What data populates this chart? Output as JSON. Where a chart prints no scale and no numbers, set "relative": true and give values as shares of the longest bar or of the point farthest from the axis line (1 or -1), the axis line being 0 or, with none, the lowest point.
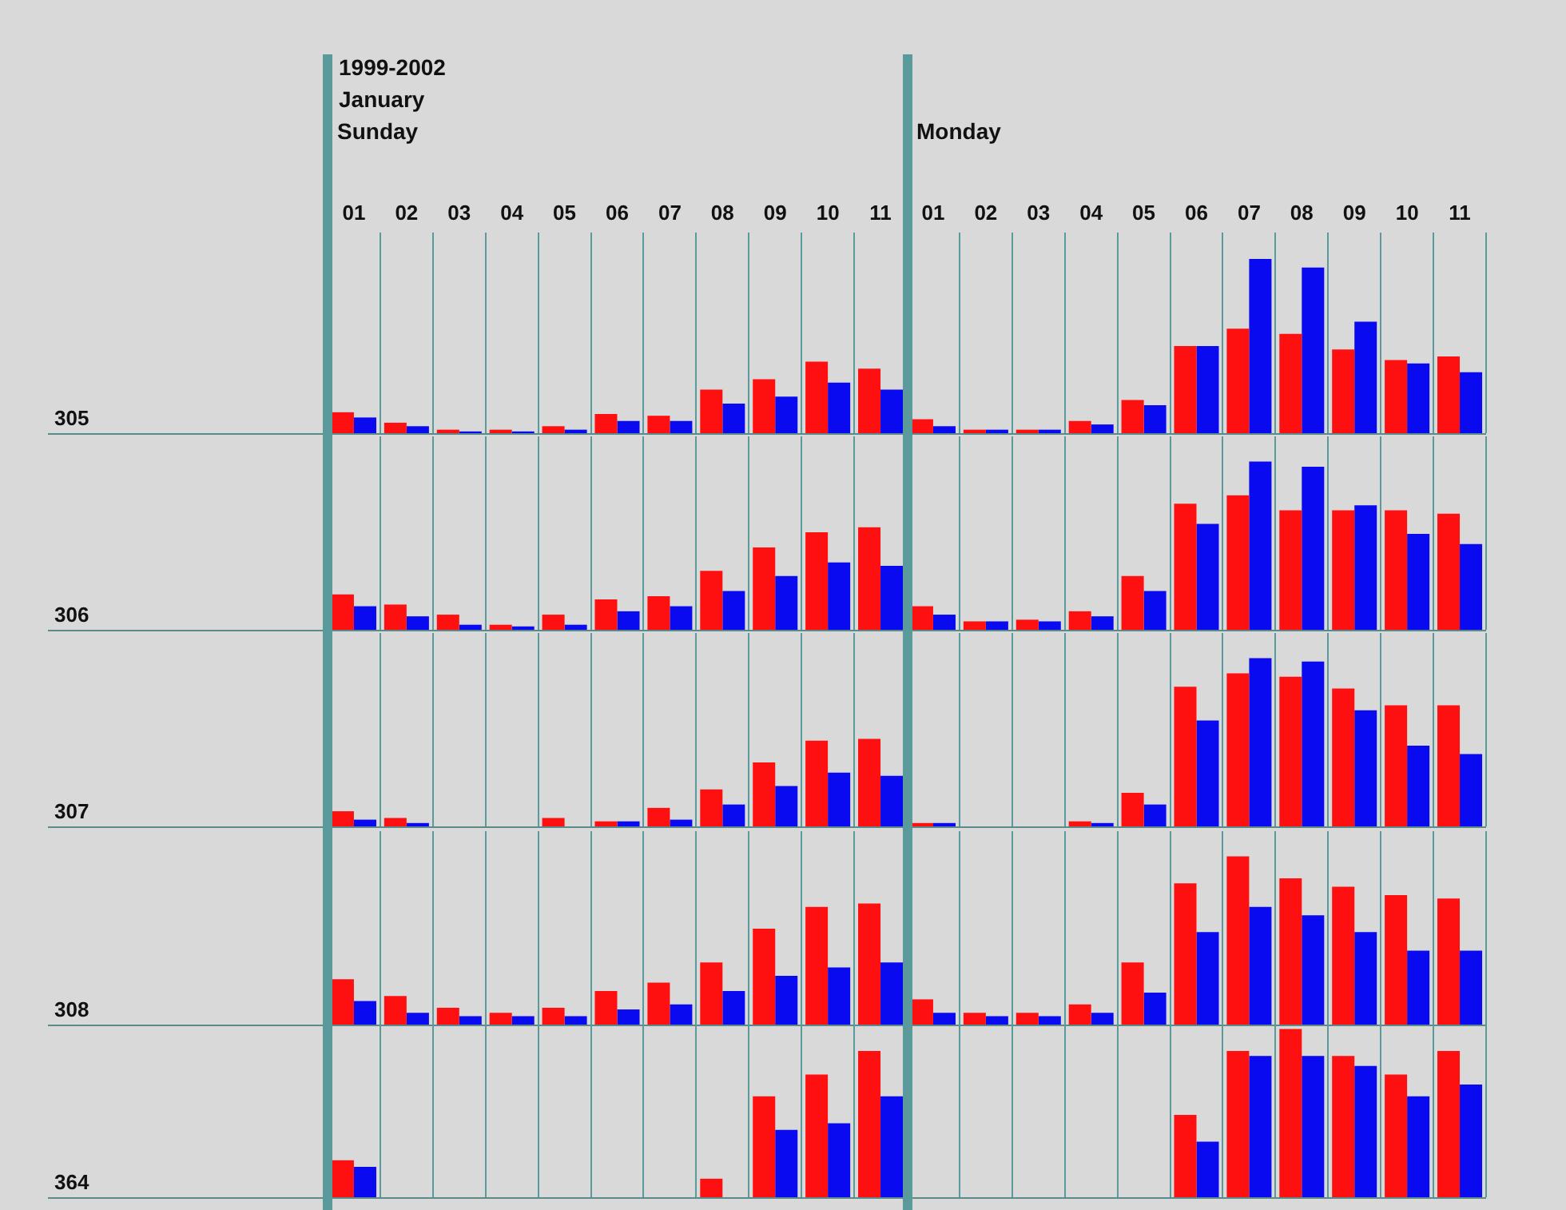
{
  "chart_data": [
    {
      "type": "bar",
      "relative": true,
      "title": "1999-2002",
      "subtitle": "January",
      "annotations": [
        "Sunday",
        "Monday"
      ],
      "ylabel": "305",
      "tick_labels": "x",
      "grid": "x",
      "legend": false,
      "categories": [
        "01",
        "02",
        "03",
        "04",
        "05",
        "06",
        "07",
        "08",
        "09",
        "10",
        "11",
        "01",
        "02",
        "03",
        "04",
        "05",
        "06",
        "07",
        "08",
        "09",
        "10",
        "11"
      ],
      "series": [
        {
          "color": "#ff1010",
          "values": [
            0.12,
            0.06,
            0.02,
            0.02,
            0.04,
            0.11,
            0.1,
            0.25,
            0.31,
            0.41,
            0.37,
            0.08,
            0.02,
            0.02,
            0.07,
            0.19,
            0.5,
            0.6,
            0.57,
            0.48,
            0.42,
            0.44
          ]
        },
        {
          "color": "#0a0af0",
          "values": [
            0.09,
            0.04,
            0.01,
            0.01,
            0.02,
            0.07,
            0.07,
            0.17,
            0.21,
            0.29,
            0.25,
            0.04,
            0.02,
            0.02,
            0.05,
            0.16,
            0.5,
            1,
            0.95,
            0.64,
            0.4,
            0.35
          ]
        }
      ]
    },
    {
      "type": "bar",
      "relative": true,
      "ylabel": "306",
      "tick_labels": false,
      "grid": "x",
      "legend": false,
      "categories": [
        "01",
        "02",
        "03",
        "04",
        "05",
        "06",
        "07",
        "08",
        "09",
        "10",
        "11",
        "01",
        "02",
        "03",
        "04",
        "05",
        "06",
        "07",
        "08",
        "09",
        "10",
        "11"
      ],
      "series": [
        {
          "color": "#ff1010",
          "values": [
            0.21,
            0.15,
            0.09,
            0.03,
            0.09,
            0.18,
            0.2,
            0.35,
            0.49,
            0.58,
            0.61,
            0.14,
            0.05,
            0.06,
            0.11,
            0.32,
            0.75,
            0.8,
            0.71,
            0.71,
            0.71,
            0.69
          ]
        },
        {
          "color": "#0a0af0",
          "values": [
            0.14,
            0.08,
            0.03,
            0.02,
            0.03,
            0.11,
            0.14,
            0.23,
            0.32,
            0.4,
            0.38,
            0.09,
            0.05,
            0.05,
            0.08,
            0.23,
            0.63,
            1,
            0.97,
            0.74,
            0.57,
            0.51
          ]
        }
      ]
    },
    {
      "type": "bar",
      "relative": true,
      "ylabel": "307",
      "tick_labels": false,
      "grid": "x",
      "legend": false,
      "categories": [
        "01",
        "02",
        "03",
        "04",
        "05",
        "06",
        "07",
        "08",
        "09",
        "10",
        "11",
        "01",
        "02",
        "03",
        "04",
        "05",
        "06",
        "07",
        "08",
        "09",
        "10",
        "11"
      ],
      "series": [
        {
          "color": "#ff1010",
          "values": [
            0.09,
            0.05,
            0,
            0,
            0.05,
            0.03,
            0.11,
            0.22,
            0.38,
            0.51,
            0.52,
            0.02,
            0,
            0,
            0.03,
            0.2,
            0.83,
            0.91,
            0.89,
            0.82,
            0.72,
            0.72
          ]
        },
        {
          "color": "#0a0af0",
          "values": [
            0.04,
            0.02,
            0,
            0,
            0,
            0.03,
            0.04,
            0.13,
            0.24,
            0.32,
            0.3,
            0.02,
            0,
            0,
            0.02,
            0.13,
            0.63,
            1,
            0.98,
            0.69,
            0.48,
            0.43
          ]
        }
      ]
    },
    {
      "type": "bar",
      "relative": true,
      "ylabel": "308",
      "tick_labels": false,
      "grid": "x",
      "legend": false,
      "categories": [
        "01",
        "02",
        "03",
        "04",
        "05",
        "06",
        "07",
        "08",
        "09",
        "10",
        "11",
        "01",
        "02",
        "03",
        "04",
        "05",
        "06",
        "07",
        "08",
        "09",
        "10",
        "11"
      ],
      "series": [
        {
          "color": "#ff1010",
          "values": [
            0.27,
            0.17,
            0.1,
            0.07,
            0.1,
            0.2,
            0.25,
            0.37,
            0.57,
            0.7,
            0.72,
            0.15,
            0.07,
            0.07,
            0.12,
            0.37,
            0.84,
            1,
            0.87,
            0.82,
            0.77,
            0.75
          ]
        },
        {
          "color": "#0a0af0",
          "values": [
            0.14,
            0.07,
            0.05,
            0.05,
            0.05,
            0.09,
            0.12,
            0.2,
            0.29,
            0.34,
            0.37,
            0.07,
            0.05,
            0.05,
            0.07,
            0.19,
            0.55,
            0.7,
            0.65,
            0.55,
            0.44,
            0.44
          ]
        }
      ]
    },
    {
      "type": "bar",
      "relative": true,
      "ylabel": "364",
      "tick_labels": false,
      "grid": "x",
      "legend": false,
      "categories": [
        "01",
        "02",
        "03",
        "04",
        "05",
        "06",
        "07",
        "08",
        "09",
        "10",
        "11",
        "01",
        "02",
        "03",
        "04",
        "05",
        "06",
        "07",
        "08",
        "09",
        "10",
        "11"
      ],
      "series": [
        {
          "color": "#ff1010",
          "values": [
            0.22,
            0,
            0,
            0,
            0,
            0,
            0,
            0.11,
            0.6,
            0.73,
            0.87,
            0,
            0,
            0,
            0,
            0,
            0.49,
            0.87,
            1,
            0.84,
            0.73,
            0.87
          ]
        },
        {
          "color": "#0a0af0",
          "values": [
            0.18,
            0,
            0,
            0,
            0,
            0,
            0,
            0,
            0.4,
            0.44,
            0.6,
            0,
            0,
            0,
            0,
            0,
            0.33,
            0.84,
            0.84,
            0.78,
            0.6,
            0.67
          ]
        }
      ]
    }
  ]
}
